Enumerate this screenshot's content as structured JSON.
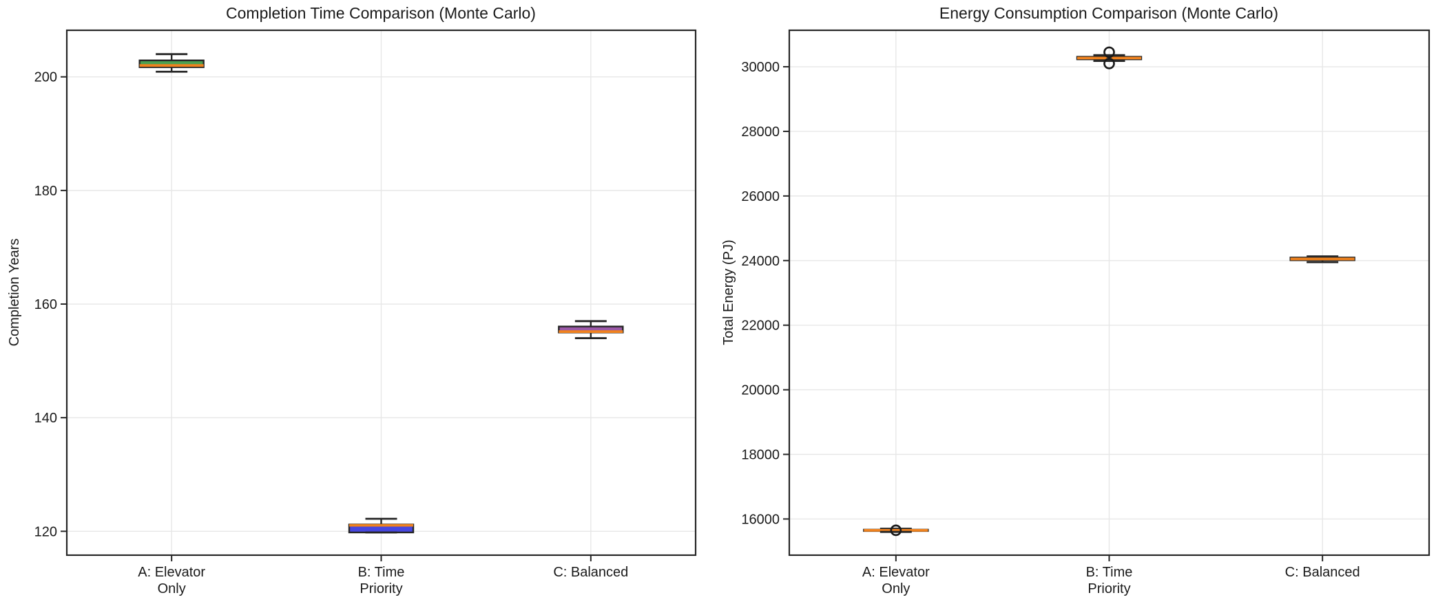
{
  "figure": {
    "background": "#ffffff",
    "kind": "box-plot-pair"
  },
  "chart_data": [
    {
      "type": "box",
      "title": "Completion Time Comparison (Monte Carlo)",
      "ylabel": "Completion Years",
      "xlabel": "",
      "categories": [
        [
          "A: Elevator",
          "Only"
        ],
        [
          "B: Time",
          "Priority"
        ],
        [
          "C: Balanced"
        ]
      ],
      "ylim": [
        115.8,
        208.2
      ],
      "yticks": [
        120,
        140,
        160,
        180,
        200
      ],
      "grid": true,
      "legend": "none",
      "colors": {
        "edge": "#262626",
        "grid": "#e7e7e7",
        "median": "#f0821e"
      },
      "boxes": [
        {
          "category": "A: Elevator Only",
          "whisker_low": 200.9,
          "q1": 201.7,
          "median": 202.0,
          "q3": 202.9,
          "whisker_high": 204.0,
          "fill": "#4aa052",
          "outliers": []
        },
        {
          "category": "B: Time Priority",
          "whisker_low": 119.8,
          "q1": 119.8,
          "median": 121.05,
          "q3": 121.2,
          "whisker_high": 122.2,
          "fill": "#4747e0",
          "outliers": []
        },
        {
          "category": "C: Balanced",
          "whisker_low": 154.0,
          "q1": 155.0,
          "median": 155.15,
          "q3": 156.05,
          "whisker_high": 157.0,
          "fill": "#9b59a8",
          "outliers": []
        }
      ]
    },
    {
      "type": "box",
      "title": "Energy Consumption Comparison (Monte Carlo)",
      "ylabel": "Total Energy (PJ)",
      "xlabel": "",
      "categories": [
        [
          "A: Elevator",
          "Only"
        ],
        [
          "B: Time",
          "Priority"
        ],
        [
          "C: Balanced"
        ]
      ],
      "ylim": [
        14880,
        31130
      ],
      "yticks": [
        16000,
        18000,
        20000,
        22000,
        24000,
        26000,
        28000,
        30000
      ],
      "grid": true,
      "legend": "none",
      "colors": {
        "edge": "#262626",
        "grid": "#e7e7e7",
        "median": "#f0821e"
      },
      "boxes": [
        {
          "category": "A: Elevator Only",
          "whisker_low": 15600,
          "q1": 15630,
          "median": 15650,
          "q3": 15670,
          "whisker_high": 15700,
          "fill": "#f0821e",
          "outliers": [
            15650
          ]
        },
        {
          "category": "B: Time Priority",
          "whisker_low": 30180,
          "q1": 30230,
          "median": 30270,
          "q3": 30310,
          "whisker_high": 30360,
          "fill": "#f0821e",
          "outliers": [
            30450,
            30100
          ]
        },
        {
          "category": "C: Balanced",
          "whisker_low": 23950,
          "q1": 24010,
          "median": 24050,
          "q3": 24095,
          "whisker_high": 24130,
          "fill": "#f0821e",
          "outliers": []
        }
      ]
    }
  ]
}
